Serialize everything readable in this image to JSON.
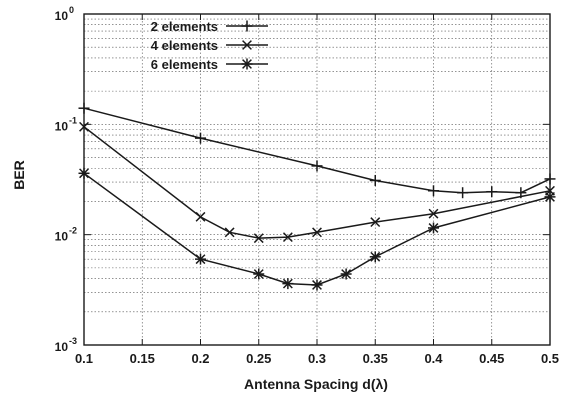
{
  "chart_data": {
    "type": "line",
    "xlabel": "Antenna Spacing d(λ)",
    "ylabel": "BER",
    "y_scale": "log",
    "xlim": [
      0.1,
      0.5
    ],
    "ylim": [
      0.001,
      1
    ],
    "grid": true,
    "legend_position": "top-left",
    "x_ticks": [
      "0.1",
      "0.15",
      "0.2",
      "0.25",
      "0.3",
      "0.35",
      "0.4",
      "0.45",
      "0.5"
    ],
    "y_ticks": [
      {
        "base": "10",
        "exp": "-3",
        "value": 0.001
      },
      {
        "base": "10",
        "exp": "-2",
        "value": 0.01
      },
      {
        "base": "10",
        "exp": "-1",
        "value": 0.1
      },
      {
        "base": "10",
        "exp": "0",
        "value": 1
      }
    ],
    "series": [
      {
        "name": "2 elements",
        "marker": "plus",
        "x": [
          0.1,
          0.2,
          0.3,
          0.35,
          0.4,
          0.425,
          0.45,
          0.475,
          0.5
        ],
        "y": [
          0.14,
          0.075,
          0.042,
          0.031,
          0.025,
          0.024,
          0.0245,
          0.024,
          0.032
        ]
      },
      {
        "name": "4 elements",
        "marker": "cross",
        "x": [
          0.1,
          0.2,
          0.225,
          0.25,
          0.275,
          0.3,
          0.35,
          0.4,
          0.5
        ],
        "y": [
          0.095,
          0.0145,
          0.0105,
          0.0093,
          0.0095,
          0.0105,
          0.013,
          0.0155,
          0.025
        ]
      },
      {
        "name": "6 elements",
        "marker": "asterisk",
        "x": [
          0.1,
          0.2,
          0.25,
          0.275,
          0.3,
          0.325,
          0.35,
          0.4,
          0.5
        ],
        "y": [
          0.036,
          0.006,
          0.0044,
          0.0036,
          0.0035,
          0.0044,
          0.0063,
          0.0115,
          0.022
        ]
      }
    ]
  }
}
